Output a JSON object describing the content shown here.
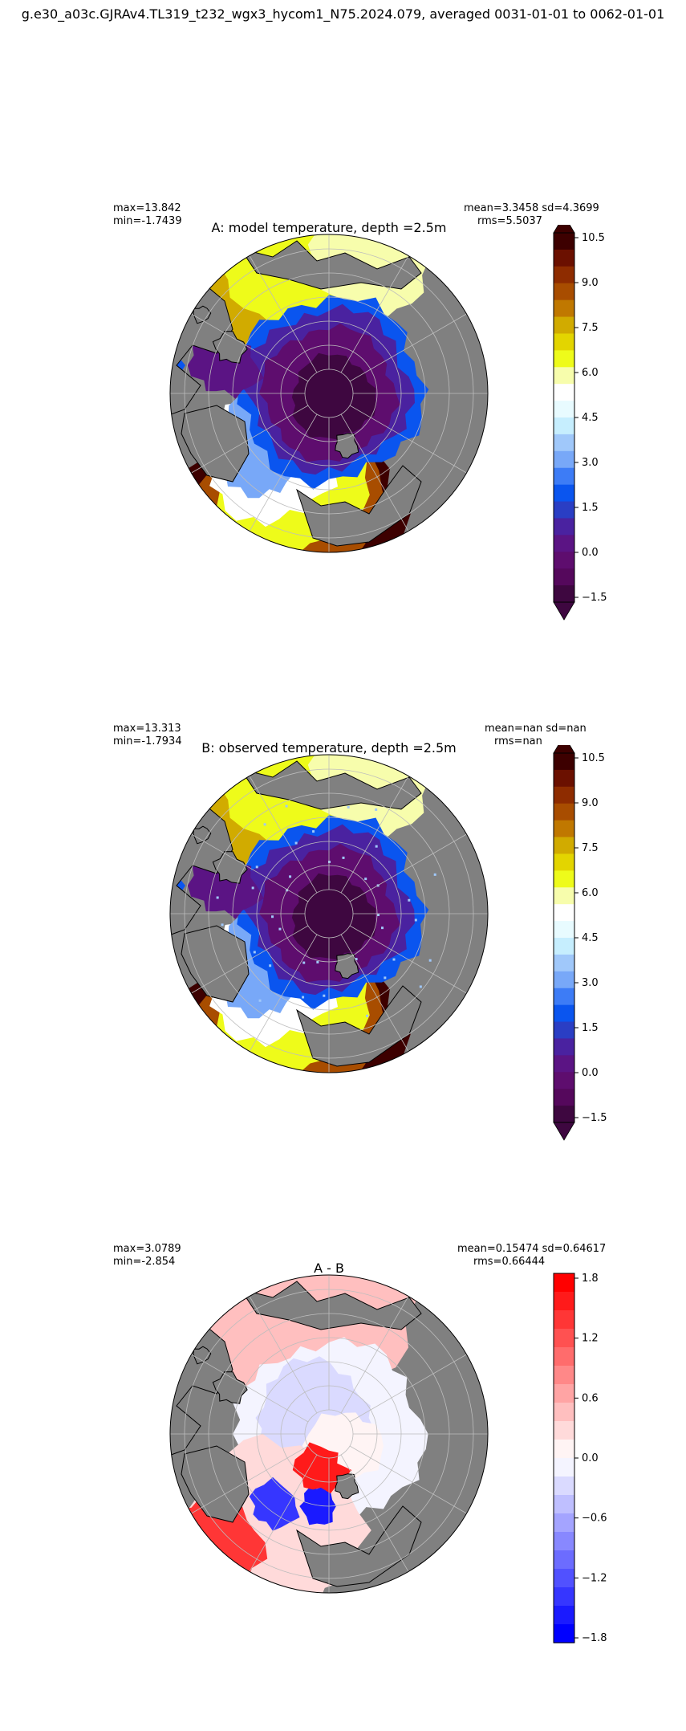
{
  "figure": {
    "suptitle": "g.e30_a03c.GJRAv4.TL319_t232_wgx3_hycom1_N75.2024.079, averaged 0031-01-01 to 0062-01-01"
  },
  "panels": [
    {
      "title": "A: model temperature, depth =2.5m",
      "max_text": "max=13.842",
      "min_text": "min=-1.7439",
      "stats_line1": "mean=3.3458 sd=4.3699",
      "stats_line2": "rms=5.5037",
      "colorbar": {
        "ticks": [
          "10.5",
          "9.0",
          "7.5",
          "6.0",
          "4.5",
          "3.0",
          "1.5",
          "0.0",
          "−1.5"
        ],
        "colors": [
          "#3d0000",
          "#6b1000",
          "#8e2c00",
          "#a84d00",
          "#c07800",
          "#d1ab00",
          "#e3d500",
          "#eefb1a",
          "#f7fdac",
          "#ffffff",
          "#e8fbff",
          "#c6eefe",
          "#a0c8fa",
          "#78a8f8",
          "#3d7cf6",
          "#0a55ef",
          "#2a3ec4",
          "#4a22a0",
          "#5b1484",
          "#5e0d6e",
          "#55085c",
          "#3e0740"
        ],
        "extend": "both"
      }
    },
    {
      "title": "B: observed temperature, depth =2.5m",
      "max_text": "max=13.313",
      "min_text": "min=-1.7934",
      "stats_line1": "mean=nan sd=nan",
      "stats_line2": "rms=nan",
      "colorbar": {
        "ticks": [
          "10.5",
          "9.0",
          "7.5",
          "6.0",
          "4.5",
          "3.0",
          "1.5",
          "0.0",
          "−1.5"
        ],
        "colors": [
          "#3d0000",
          "#6b1000",
          "#8e2c00",
          "#a84d00",
          "#c07800",
          "#d1ab00",
          "#e3d500",
          "#eefb1a",
          "#f7fdac",
          "#ffffff",
          "#e8fbff",
          "#c6eefe",
          "#a0c8fa",
          "#78a8f8",
          "#3d7cf6",
          "#0a55ef",
          "#2a3ec4",
          "#4a22a0",
          "#5b1484",
          "#5e0d6e",
          "#55085c",
          "#3e0740"
        ],
        "extend": "both"
      }
    },
    {
      "title": "A - B",
      "max_text": "max=3.0789",
      "min_text": "min=-2.854",
      "stats_line1": "mean=0.15474 sd=0.64617",
      "stats_line2": "rms=0.66444",
      "colorbar": {
        "ticks": [
          "1.8",
          "1.2",
          "0.6",
          "0.0",
          "−0.6",
          "−1.2",
          "−1.8"
        ],
        "colors": [
          "#ff0000",
          "#ff1a1a",
          "#ff3636",
          "#ff5151",
          "#ff6c6c",
          "#ff8888",
          "#ffa4a4",
          "#ffbfbf",
          "#ffdada",
          "#fff4f4",
          "#f4f4ff",
          "#dadaff",
          "#bfbfff",
          "#a4a4ff",
          "#8888ff",
          "#6c6cff",
          "#5151ff",
          "#3636ff",
          "#1a1aff",
          "#0000ff"
        ],
        "extend": "neither"
      }
    }
  ]
}
